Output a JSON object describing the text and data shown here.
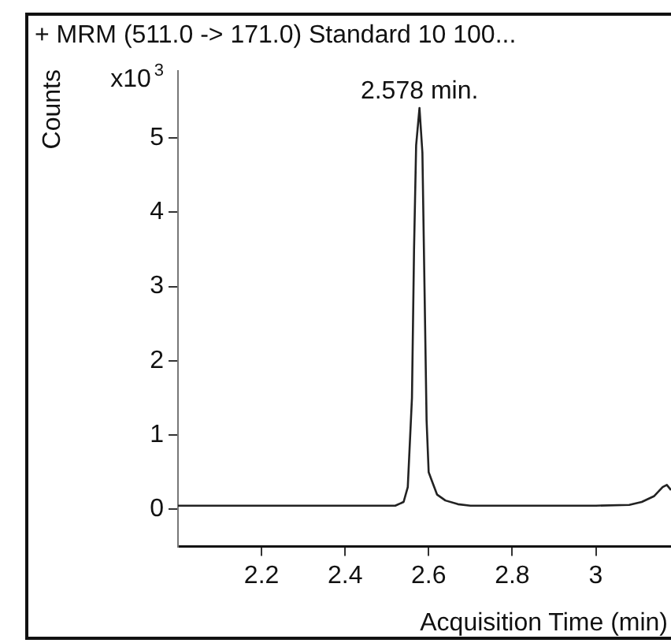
{
  "chart_data": {
    "type": "line",
    "title": "+ MRM (511.0 -> 171.0) Standard 10 100...",
    "xlabel": "Acquisition Time (min)",
    "ylabel": "Counts",
    "annotations": [
      "x10$^{3}$",
      {
        "text": "2.578 min.",
        "x": 2.578,
        "y": 5.4
      }
    ],
    "series": [
      {
        "color": "#222222",
        "x": [
          2.0,
          2.05,
          2.1,
          2.2,
          2.3,
          2.4,
          2.48,
          2.52,
          2.54,
          2.55,
          2.56,
          2.565,
          2.57,
          2.578,
          2.585,
          2.59,
          2.595,
          2.6,
          2.61,
          2.62,
          2.64,
          2.67,
          2.7,
          2.8,
          2.9,
          3.0,
          3.08,
          3.11,
          3.14,
          3.16,
          3.17,
          3.18
        ],
        "values": [
          0.05,
          0.05,
          0.05,
          0.05,
          0.05,
          0.05,
          0.05,
          0.05,
          0.1,
          0.3,
          1.5,
          3.5,
          4.9,
          5.4,
          4.8,
          3.0,
          1.2,
          0.5,
          0.35,
          0.2,
          0.12,
          0.07,
          0.05,
          0.05,
          0.05,
          0.05,
          0.06,
          0.1,
          0.18,
          0.3,
          0.33,
          0.26
        ]
      }
    ],
    "xlim": [
      2.0,
      3.18
    ],
    "xticks": [
      2.2,
      2.4,
      2.6,
      2.8,
      3
    ],
    "ylim": [
      -0.5,
      5.9
    ],
    "yticks": [
      0,
      1,
      2,
      3,
      4,
      5
    ],
    "grid": false,
    "legend": false,
    "marker": "none",
    "line_style": "solid"
  }
}
